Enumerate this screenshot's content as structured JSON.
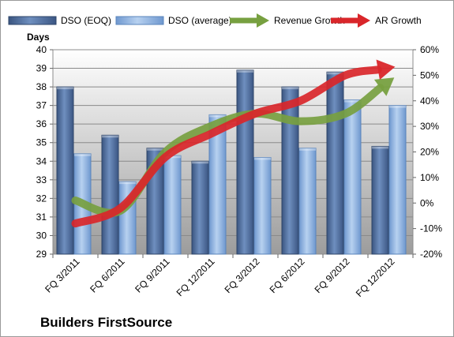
{
  "chart_data": {
    "type": "bar",
    "title": "",
    "company": "Builders FirstSource",
    "ylabel": "Days",
    "categories": [
      "FQ 3/2011",
      "FQ 6/2011",
      "FQ 9/2011",
      "FQ 12/2011",
      "FQ 3/2012",
      "FQ 6/2012",
      "FQ 9/2012",
      "FQ 12/2012"
    ],
    "ylim": [
      29,
      40
    ],
    "y_ticks": [
      "29",
      "30",
      "31",
      "32",
      "33",
      "34",
      "35",
      "36",
      "37",
      "38",
      "39",
      "40"
    ],
    "y2lim": [
      -0.2,
      0.6
    ],
    "y2_ticks": [
      "-20%",
      "-10%",
      "0%",
      "10%",
      "20%",
      "30%",
      "40%",
      "50%",
      "60%"
    ],
    "series": [
      {
        "name": "DSO (EOQ)",
        "type": "bar",
        "axis": "left",
        "color": "#4f6f9f",
        "values": [
          38.0,
          35.4,
          34.7,
          34.0,
          38.9,
          38.0,
          38.8,
          34.8
        ]
      },
      {
        "name": "DSO (average)",
        "type": "bar",
        "axis": "left",
        "color": "#8fb3e0",
        "values": [
          34.4,
          32.9,
          34.3,
          36.5,
          34.2,
          34.7,
          37.3,
          37.0
        ]
      },
      {
        "name": "Revenue Growth",
        "type": "line",
        "axis": "right",
        "color": "#77a040",
        "values": [
          0.01,
          -0.03,
          0.2,
          0.3,
          0.35,
          0.32,
          0.35,
          0.48
        ]
      },
      {
        "name": "AR Growth",
        "type": "line",
        "axis": "right",
        "color": "#d9262a",
        "values": [
          -0.08,
          -0.02,
          0.18,
          0.27,
          0.35,
          0.4,
          0.5,
          0.53
        ]
      }
    ],
    "legend_position": "top",
    "grid": true
  }
}
